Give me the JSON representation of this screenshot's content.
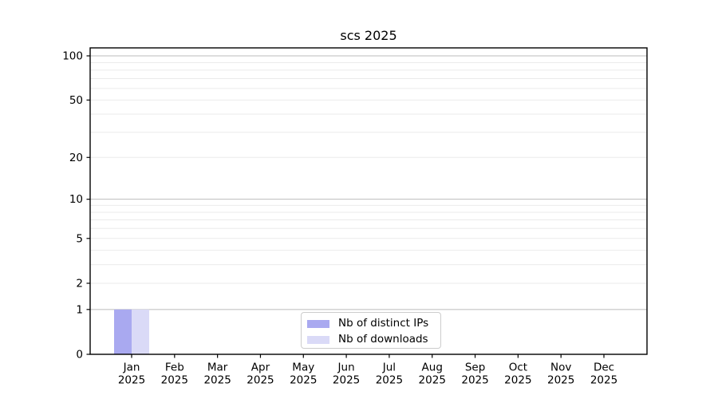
{
  "chart_data": {
    "type": "bar",
    "title": "scs 2025",
    "categories": [
      "Jan",
      "Feb",
      "Mar",
      "Apr",
      "May",
      "Jun",
      "Jul",
      "Aug",
      "Sep",
      "Oct",
      "Nov",
      "Dec"
    ],
    "year_label": "2025",
    "series": [
      {
        "name": "Nb of distinct IPs",
        "color": "#a9a9f0",
        "values": [
          1,
          0,
          0,
          0,
          0,
          0,
          0,
          0,
          0,
          0,
          0,
          0
        ]
      },
      {
        "name": "Nb of downloads",
        "color": "#dadaf7",
        "values": [
          1,
          0,
          0,
          0,
          0,
          0,
          0,
          0,
          0,
          0,
          0,
          0
        ]
      }
    ],
    "yscale": "log1p",
    "ylim": [
      0,
      100
    ],
    "y_axis": {
      "tick_values": [
        0,
        1,
        2,
        5,
        10,
        20,
        50,
        100
      ],
      "major_gridlines": [
        1,
        10,
        100
      ],
      "minor_gridlines": [
        2,
        3,
        4,
        5,
        6,
        7,
        8,
        9,
        20,
        30,
        40,
        50,
        60,
        70,
        80,
        90
      ]
    },
    "legend_position": "lower center",
    "colors": {
      "major_grid": "#bbbbbb",
      "minor_grid": "#ebebeb",
      "spine": "#000000",
      "tick_text": "#000000"
    }
  }
}
